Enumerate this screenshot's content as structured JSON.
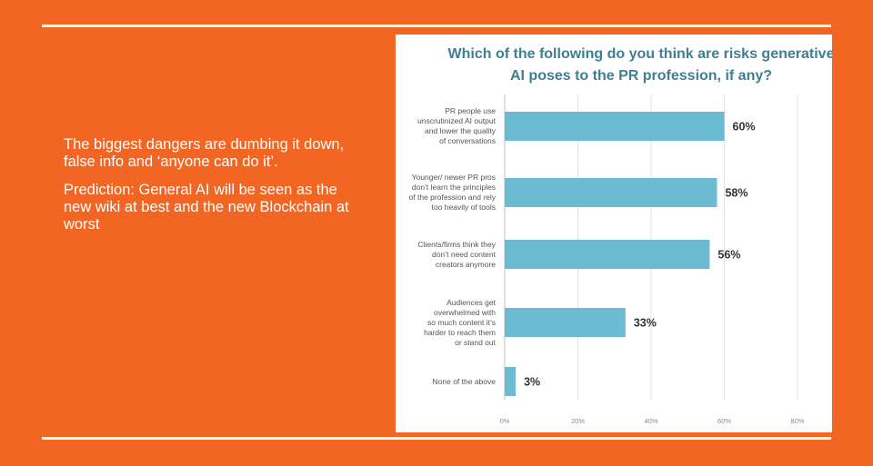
{
  "slide": {
    "paragraphs": [
      "The biggest dangers are dumbing it down, false info and ‘anyone can do it’.",
      "Prediction: General AI will be seen as the new wiki at best and the new Blockchain at worst"
    ]
  },
  "colors": {
    "background": "#F26522",
    "bar": "#6BBBD3",
    "title": "#3F7F94",
    "value_label": "#333333"
  },
  "chart_data": {
    "type": "bar",
    "orientation": "horizontal",
    "title_lines": [
      "Which of the following do you think are risks generative",
      "AI poses to the PR profession, if any?"
    ],
    "categories": [
      [
        "PR people use",
        "unscrutinized AI output",
        "and lower the quality",
        "of conversations"
      ],
      [
        "Younger/ newer PR pros",
        "don’t learn the principles",
        "of the profession and rely",
        "too heavily of tools"
      ],
      [
        "Clients/firms think they",
        "don’t need content",
        "creators anymore"
      ],
      [
        "Audiences get",
        "overwhelmed with",
        "so much content it’s",
        "harder to reach them",
        "or stand out"
      ],
      [
        "None of the above"
      ]
    ],
    "values": [
      60,
      58,
      56,
      33,
      3
    ],
    "value_labels": [
      "60%",
      "58%",
      "56%",
      "33%",
      "3%"
    ],
    "xlim": [
      0,
      80
    ],
    "x_ticks": [
      "0%",
      "20%",
      "40%",
      "60%",
      "80%"
    ],
    "grid": true
  }
}
